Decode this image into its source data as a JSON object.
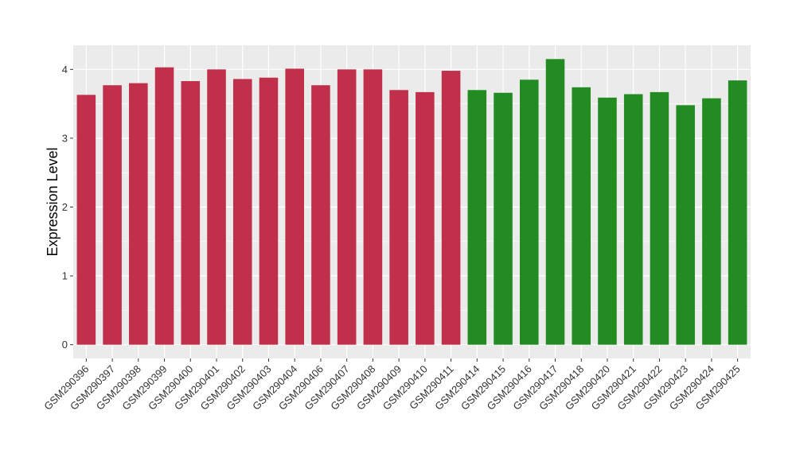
{
  "chart_data": {
    "type": "bar",
    "title": "",
    "xlabel": "",
    "ylabel": "Expression Level",
    "ylim": [
      -0.2,
      4.35
    ],
    "yticks": [
      0,
      1,
      2,
      3,
      4
    ],
    "grid": true,
    "legend": "none",
    "colors": {
      "group1": "#C0304A",
      "group2": "#228B22",
      "panel": "#EBEBEB",
      "grid": "#FFFFFF"
    },
    "categories": [
      "GSM290396",
      "GSM290397",
      "GSM290398",
      "GSM290399",
      "GSM290400",
      "GSM290401",
      "GSM290402",
      "GSM290403",
      "GSM290404",
      "GSM290406",
      "GSM290407",
      "GSM290408",
      "GSM290409",
      "GSM290410",
      "GSM290411",
      "GSM290414",
      "GSM290415",
      "GSM290416",
      "GSM290417",
      "GSM290418",
      "GSM290420",
      "GSM290421",
      "GSM290422",
      "GSM290423",
      "GSM290424",
      "GSM290425"
    ],
    "values": [
      3.63,
      3.77,
      3.8,
      4.03,
      3.83,
      4.0,
      3.86,
      3.88,
      4.01,
      3.77,
      4.0,
      4.0,
      3.7,
      3.67,
      3.98,
      3.7,
      3.66,
      3.85,
      4.15,
      3.74,
      3.59,
      3.64,
      3.67,
      3.48,
      3.58,
      3.84
    ],
    "groups": [
      1,
      1,
      1,
      1,
      1,
      1,
      1,
      1,
      1,
      1,
      1,
      1,
      1,
      1,
      1,
      2,
      2,
      2,
      2,
      2,
      2,
      2,
      2,
      2,
      2,
      2
    ]
  }
}
